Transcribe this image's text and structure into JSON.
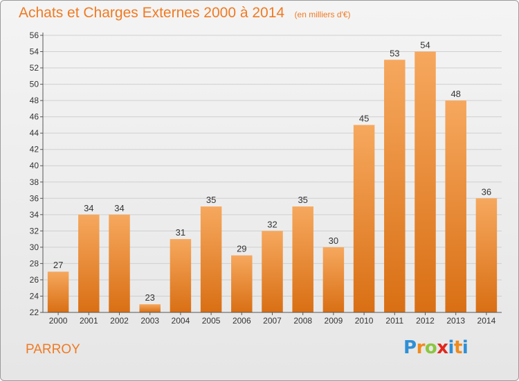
{
  "colors": {
    "accent": "#f07a22",
    "bar_top": "#f6a85e",
    "bar_bottom": "#d96f14",
    "grid": "#cfcfcf"
  },
  "title": "Achats et Charges Externes 2000 à 2014",
  "subtitle": "(en milliers d'€)",
  "commune": "PARROY",
  "logo": {
    "letters": [
      "P",
      "r",
      "o",
      "x",
      "i",
      "t",
      "i"
    ],
    "colors": [
      "#2f8fd6",
      "#f08a1c",
      "#8cc63f",
      "#e2261c",
      "#2f8fd6",
      "#f08a1c",
      "#2f8fd6"
    ]
  },
  "chart_data": {
    "type": "bar",
    "categories": [
      "2000",
      "2001",
      "2002",
      "2003",
      "2004",
      "2005",
      "2006",
      "2007",
      "2008",
      "2009",
      "2010",
      "2011",
      "2012",
      "2013",
      "2014"
    ],
    "values": [
      27,
      34,
      34,
      23,
      31,
      35,
      29,
      32,
      35,
      30,
      45,
      53,
      54,
      48,
      36
    ],
    "ylim": [
      22,
      56
    ],
    "yticks": [
      22,
      24,
      26,
      28,
      30,
      32,
      34,
      36,
      38,
      40,
      42,
      44,
      46,
      48,
      50,
      52,
      54,
      56
    ],
    "grid": true,
    "title": "Achats et Charges Externes 2000 à 2014",
    "subtitle": "(en milliers d'€)",
    "xlabel": "",
    "ylabel": ""
  }
}
